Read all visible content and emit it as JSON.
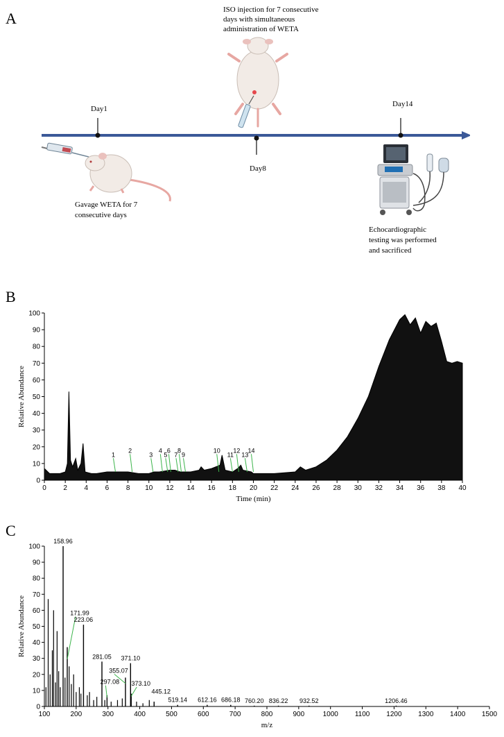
{
  "panels": {
    "a": "A",
    "b": "B",
    "c": "C"
  },
  "timeline": {
    "days": [
      {
        "label": "Day1"
      },
      {
        "label": "Day8"
      },
      {
        "label": "Day14"
      }
    ],
    "iso_text": [
      "ISO injection for 7 consecutive",
      "days with simultaneous",
      "administration of WETA"
    ],
    "gavage_text": [
      "Gavage WETA for 7",
      "consecutive days"
    ],
    "echo_text": [
      "Echocardiographic",
      "testing was performed",
      "and sacrificed"
    ],
    "colors": {
      "arrow": "#3b5998",
      "mouse": "#f2ebe6",
      "tail": "#e7a7a2"
    },
    "icons": [
      "syringe-icon",
      "mouse-icon",
      "ultrasound-machine-icon"
    ]
  },
  "chart_data": [
    {
      "type": "line",
      "panel": "B",
      "xlabel": "Time (min)",
      "ylabel": "Relative Abundance",
      "xlim": [
        0,
        40
      ],
      "ylim": [
        0,
        100
      ],
      "xticks": [
        0,
        2,
        4,
        6,
        8,
        10,
        12,
        14,
        16,
        18,
        20,
        22,
        24,
        26,
        28,
        30,
        32,
        34,
        36,
        38,
        40
      ],
      "yticks": [
        0,
        10,
        20,
        30,
        40,
        50,
        60,
        70,
        80,
        90,
        100
      ],
      "series": [
        {
          "x": [
            0,
            0.5,
            1,
            1.5,
            2,
            2.2,
            2.35,
            2.5,
            2.7,
            3,
            3.2,
            3.5,
            3.7,
            3.9,
            4.5,
            5,
            6,
            7,
            8,
            9,
            10,
            10.5,
            11,
            12,
            12.5,
            13,
            14,
            14.8,
            15,
            15.3,
            16,
            16.8,
            17,
            17.3,
            18,
            18.5,
            18.8,
            19,
            19.8,
            20,
            22,
            24,
            24.5,
            25,
            26,
            27,
            28,
            29,
            30,
            31,
            32,
            33,
            34,
            34.5,
            35,
            35.5,
            36,
            36.5,
            37,
            37.5,
            38,
            38.5,
            39,
            39.5,
            40
          ],
          "y": [
            7,
            4,
            4,
            4,
            5,
            10,
            53,
            12,
            8,
            13,
            6,
            10,
            22,
            5,
            4,
            4,
            5,
            5,
            5,
            4,
            4,
            5,
            5,
            6,
            6,
            5,
            5,
            6,
            8,
            6,
            7,
            9,
            15,
            6,
            5,
            7,
            9,
            6,
            5,
            4,
            4,
            5,
            8,
            6,
            8,
            12,
            18,
            26,
            37,
            50,
            68,
            84,
            96,
            99,
            93,
            97,
            88,
            95,
            92,
            94,
            83,
            71,
            70,
            71,
            70
          ]
        }
      ],
      "peak_labels": [
        {
          "label": "1",
          "x": 6.6
        },
        {
          "label": "2",
          "x": 8.2
        },
        {
          "label": "3",
          "x": 10.2
        },
        {
          "label": "4",
          "x": 11.1
        },
        {
          "label": "5",
          "x": 11.6
        },
        {
          "label": "6",
          "x": 11.9
        },
        {
          "label": "7",
          "x": 12.6
        },
        {
          "label": "8",
          "x": 12.9
        },
        {
          "label": "9",
          "x": 13.3
        },
        {
          "label": "10",
          "x": 16.5
        },
        {
          "label": "11",
          "x": 17.8
        },
        {
          "label": "12",
          "x": 18.4
        },
        {
          "label": "13",
          "x": 19.2
        },
        {
          "label": "14",
          "x": 19.8
        }
      ]
    },
    {
      "type": "bar",
      "panel": "C",
      "xlabel": "m/z",
      "ylabel": "Relative Abundance",
      "xlim": [
        100,
        1500
      ],
      "ylim": [
        0,
        100
      ],
      "xticks": [
        100,
        200,
        300,
        400,
        500,
        600,
        700,
        800,
        900,
        1000,
        1100,
        1200,
        1300,
        1400,
        1500
      ],
      "yticks": [
        0,
        10,
        20,
        30,
        40,
        50,
        60,
        70,
        80,
        90,
        100
      ],
      "peaks": [
        {
          "mz": 158.96,
          "intensity": 100,
          "label": "158.96"
        },
        {
          "mz": 171.99,
          "intensity": 37,
          "label": "171.99"
        },
        {
          "mz": 223.06,
          "intensity": 51,
          "label": "223.06"
        },
        {
          "mz": 281.05,
          "intensity": 28,
          "label": "281.05"
        },
        {
          "mz": 297.08,
          "intensity": 7,
          "label": "297.08"
        },
        {
          "mz": 355.07,
          "intensity": 18,
          "label": "355.07"
        },
        {
          "mz": 371.1,
          "intensity": 27,
          "label": "371.10"
        },
        {
          "mz": 373.1,
          "intensity": 8,
          "label": "373.10"
        },
        {
          "mz": 445.12,
          "intensity": 3,
          "label": "445.12"
        },
        {
          "mz": 519.14,
          "intensity": 1,
          "label": "519.14"
        },
        {
          "mz": 612.16,
          "intensity": 1,
          "label": "612.16"
        },
        {
          "mz": 686.18,
          "intensity": 1,
          "label": "686.18"
        },
        {
          "mz": 760.2,
          "intensity": 0.5,
          "label": "760.20"
        },
        {
          "mz": 836.22,
          "intensity": 0.5,
          "label": "836.22"
        },
        {
          "mz": 932.52,
          "intensity": 0.5,
          "label": "932.52"
        },
        {
          "mz": 1206.46,
          "intensity": 0.5,
          "label": "1206.46"
        }
      ],
      "minor_peaks": [
        {
          "mz": 105,
          "intensity": 12
        },
        {
          "mz": 112,
          "intensity": 67
        },
        {
          "mz": 118,
          "intensity": 20
        },
        {
          "mz": 125,
          "intensity": 35
        },
        {
          "mz": 129,
          "intensity": 60
        },
        {
          "mz": 135,
          "intensity": 15
        },
        {
          "mz": 140,
          "intensity": 47
        },
        {
          "mz": 145,
          "intensity": 22
        },
        {
          "mz": 150,
          "intensity": 12
        },
        {
          "mz": 165,
          "intensity": 18
        },
        {
          "mz": 178,
          "intensity": 25
        },
        {
          "mz": 185,
          "intensity": 14
        },
        {
          "mz": 192,
          "intensity": 20
        },
        {
          "mz": 200,
          "intensity": 9
        },
        {
          "mz": 210,
          "intensity": 12
        },
        {
          "mz": 215,
          "intensity": 8
        },
        {
          "mz": 235,
          "intensity": 7
        },
        {
          "mz": 242,
          "intensity": 9
        },
        {
          "mz": 255,
          "intensity": 4
        },
        {
          "mz": 265,
          "intensity": 6
        },
        {
          "mz": 290,
          "intensity": 4
        },
        {
          "mz": 310,
          "intensity": 3
        },
        {
          "mz": 330,
          "intensity": 4
        },
        {
          "mz": 345,
          "intensity": 5
        },
        {
          "mz": 390,
          "intensity": 3
        },
        {
          "mz": 410,
          "intensity": 2
        },
        {
          "mz": 430,
          "intensity": 4
        }
      ]
    }
  ]
}
